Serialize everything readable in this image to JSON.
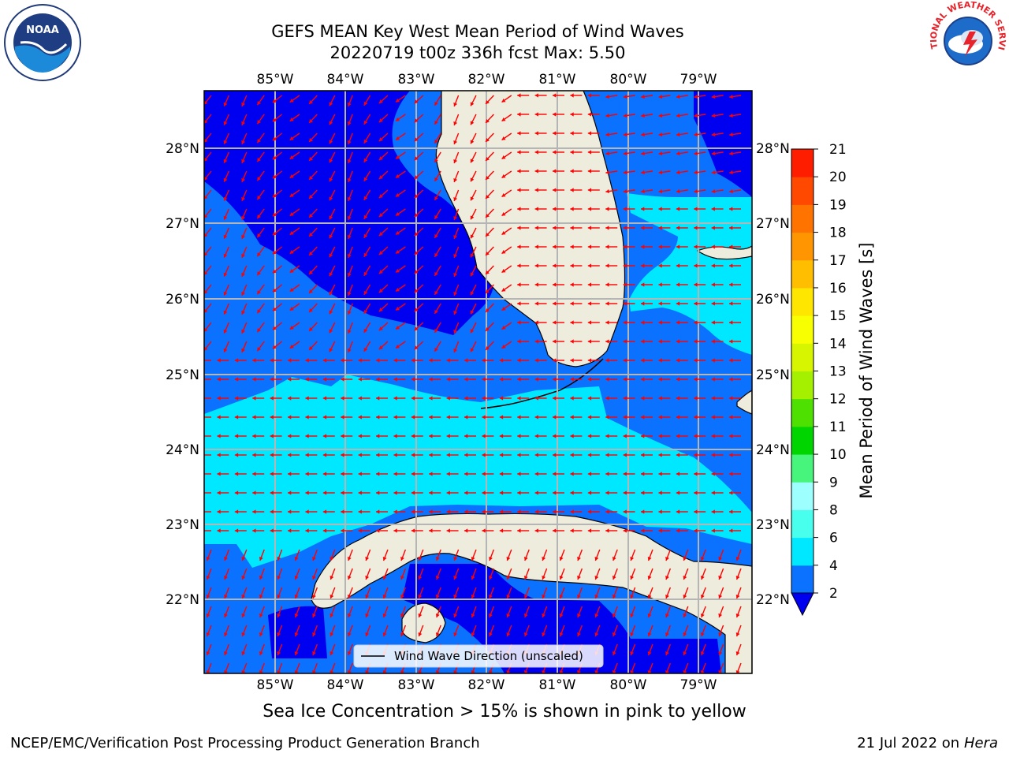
{
  "title": {
    "line1": "GEFS MEAN Key West Mean Period of Wind Waves",
    "line2": "20220719 t00z 336h fcst   Max: 5.50"
  },
  "map": {
    "longitude_ticks": [
      "85°W",
      "84°W",
      "83°W",
      "82°W",
      "81°W",
      "80°W",
      "79°W"
    ],
    "latitude_ticks": [
      "28°N",
      "27°N",
      "26°N",
      "25°N",
      "24°N",
      "23°N",
      "22°N"
    ],
    "extent": {
      "lon_min": -86.0,
      "lon_max": -78.25,
      "lat_min": 21.0,
      "lat_max": 28.8
    },
    "arrow_color": "#ff0000",
    "land_color": "#eeecdc",
    "legend_label": "Wind Wave Direction (unscaled)"
  },
  "colorbar": {
    "label": "Mean Period of Wind Waves [s]",
    "ticks": [
      "2",
      "4",
      "6",
      "8",
      "9",
      "10",
      "11",
      "12",
      "13",
      "14",
      "15",
      "16",
      "17",
      "18",
      "19",
      "20",
      "21"
    ],
    "colors": [
      "#0a72ff",
      "#00e8ff",
      "#48ffee",
      "#9effff",
      "#47f57c",
      "#00d500",
      "#4de000",
      "#a4f000",
      "#d8f500",
      "#f7ff00",
      "#ffe600",
      "#ffbe00",
      "#ff9500",
      "#ff7400",
      "#ff4900",
      "#ff1d00"
    ],
    "under_color": "#0000f0"
  },
  "footnote": "Sea Ice Concentration > 15% is shown in pink to yellow",
  "credit": {
    "left": "NCEP/EMC/Verification Post Processing Product Generation Branch",
    "right_date": "21 Jul 2022 on ",
    "right_host": "Hera"
  },
  "logos": {
    "noaa_text": "NOAA",
    "nws_text": "NATIONAL WEATHER SERVICE"
  }
}
